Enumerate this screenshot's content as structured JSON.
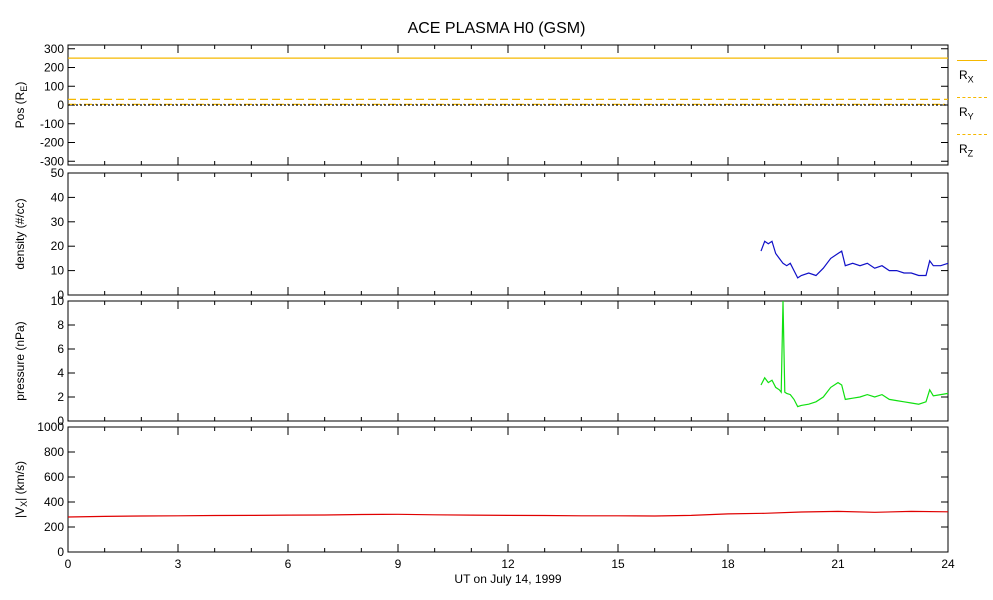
{
  "title": "ACE PLASMA H0 (GSM)",
  "colors": {
    "axis": "#000000",
    "pos": "#f5b800",
    "density": "#1010c8",
    "pressure": "#10e010",
    "vx": "#e00000"
  },
  "legend": [
    {
      "name": "R",
      "sub": "X",
      "style": "solid"
    },
    {
      "name": "R",
      "sub": "Y",
      "style": "dashed"
    },
    {
      "name": "R",
      "sub": "Z",
      "style": "dashdot"
    }
  ],
  "chart_data": [
    {
      "type": "line",
      "panel": "position",
      "ylabel": "Pos (R",
      "ylabel_sub": "E",
      "ylabel_close": ")",
      "ylim": [
        -320,
        320
      ],
      "yticks": [
        300,
        200,
        100,
        0,
        -100,
        -200,
        -300
      ],
      "xlim": [
        0,
        24
      ],
      "series": [
        {
          "name": "RX",
          "style": "solid",
          "x": [
            0,
            24
          ],
          "y": [
            250,
            250
          ]
        },
        {
          "name": "RY",
          "style": "dashed",
          "x": [
            0,
            24
          ],
          "y": [
            30,
            30
          ]
        },
        {
          "name": "RZ",
          "style": "dashdot",
          "x": [
            0,
            24
          ],
          "y": [
            3,
            3
          ]
        },
        {
          "name": "zero",
          "style": "dotted",
          "x": [
            0,
            24
          ],
          "y": [
            0,
            0
          ]
        }
      ]
    },
    {
      "type": "line",
      "panel": "density",
      "ylabel": "density (#/cc)",
      "ylim": [
        0,
        50
      ],
      "yticks": [
        50,
        40,
        30,
        20,
        10,
        0
      ],
      "xlim": [
        0,
        24
      ],
      "series": [
        {
          "name": "density",
          "x": [
            18.9,
            19.0,
            19.1,
            19.2,
            19.3,
            19.4,
            19.5,
            19.6,
            19.7,
            19.8,
            19.9,
            20.0,
            20.2,
            20.4,
            20.6,
            20.8,
            21.0,
            21.1,
            21.2,
            21.4,
            21.6,
            21.8,
            22.0,
            22.2,
            22.4,
            22.6,
            22.8,
            23.0,
            23.2,
            23.4,
            23.5,
            23.6,
            23.8,
            24.0
          ],
          "y": [
            18,
            22,
            21,
            22,
            17,
            15,
            13,
            12,
            13,
            10,
            7,
            8,
            9,
            8,
            11,
            15,
            17,
            18,
            12,
            13,
            12,
            13,
            11,
            12,
            10,
            10,
            9,
            9,
            8,
            8,
            14,
            12,
            12,
            13
          ]
        }
      ]
    },
    {
      "type": "line",
      "panel": "pressure",
      "ylabel": "pressure (nPa)",
      "ylim": [
        0,
        10
      ],
      "yticks": [
        10,
        8,
        6,
        4,
        2,
        0
      ],
      "xlim": [
        0,
        24
      ],
      "series": [
        {
          "name": "pressure",
          "x": [
            18.9,
            19.0,
            19.1,
            19.2,
            19.3,
            19.4,
            19.45,
            19.5,
            19.55,
            19.6,
            19.7,
            19.8,
            19.9,
            20.0,
            20.2,
            20.4,
            20.6,
            20.8,
            21.0,
            21.1,
            21.2,
            21.4,
            21.6,
            21.8,
            22.0,
            22.2,
            22.4,
            22.6,
            22.8,
            23.0,
            23.2,
            23.4,
            23.5,
            23.6,
            23.8,
            24.0
          ],
          "y": [
            3.0,
            3.6,
            3.2,
            3.4,
            2.8,
            2.6,
            2.4,
            10,
            2.4,
            2.3,
            2.2,
            1.8,
            1.2,
            1.3,
            1.4,
            1.6,
            2.0,
            2.8,
            3.2,
            3.0,
            1.8,
            1.9,
            2.0,
            2.2,
            2.0,
            2.2,
            1.8,
            1.7,
            1.6,
            1.5,
            1.4,
            1.6,
            2.6,
            2.1,
            2.2,
            2.3
          ]
        }
      ]
    },
    {
      "type": "line",
      "panel": "vx",
      "ylabel": "|V",
      "ylabel_sub": "X",
      "ylabel_close": "| (km/s)",
      "ylim": [
        0,
        1000
      ],
      "yticks": [
        1000,
        800,
        600,
        400,
        200,
        0
      ],
      "xlim": [
        0,
        24
      ],
      "xticks": [
        0,
        3,
        6,
        9,
        12,
        15,
        18,
        21,
        24
      ],
      "xlabel": "UT on July 14, 1999",
      "series": [
        {
          "name": "vx",
          "x": [
            0,
            1,
            2,
            3,
            4,
            5,
            6,
            7,
            8,
            9,
            10,
            11,
            12,
            13,
            14,
            15,
            16,
            17,
            18,
            19,
            20,
            21,
            22,
            23,
            24
          ],
          "y": [
            280,
            285,
            288,
            290,
            292,
            293,
            295,
            296,
            300,
            302,
            298,
            295,
            293,
            292,
            290,
            290,
            288,
            293,
            305,
            310,
            320,
            325,
            318,
            325,
            322
          ]
        }
      ]
    }
  ]
}
